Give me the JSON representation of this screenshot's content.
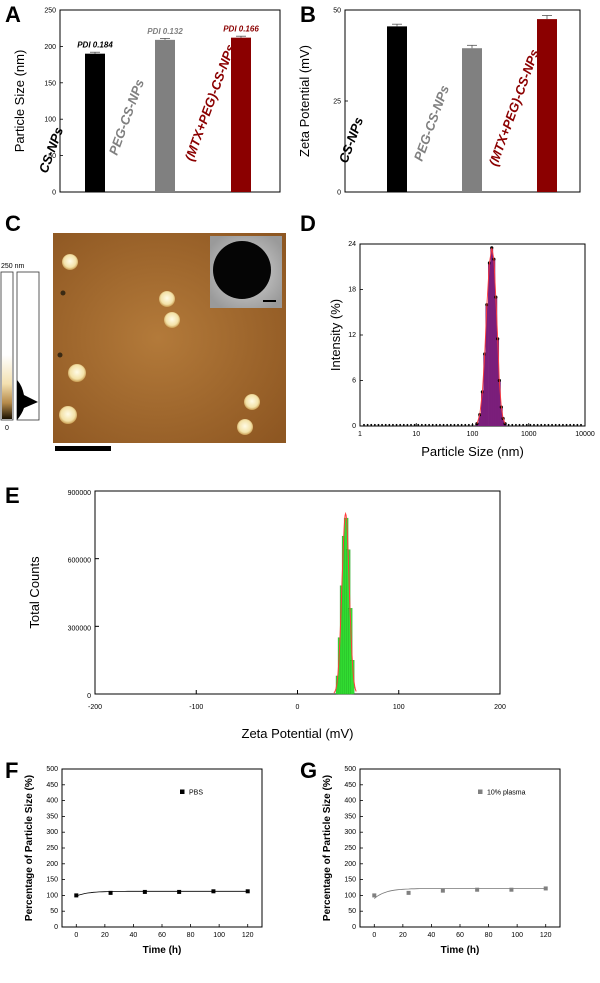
{
  "panels": {
    "A": "A",
    "B": "B",
    "C": "C",
    "D": "D",
    "E": "E",
    "F": "F",
    "G": "G"
  },
  "micro": {
    "afm_scale_max": "250 nm",
    "afm_scale_min": "0"
  },
  "colors": {
    "black": "#000000",
    "gray": "#808080",
    "darkred": "#8b0000",
    "purple": "#7b1e7b",
    "green": "#33dd33",
    "fit_red": "#ff3b3b"
  },
  "chart_data": [
    {
      "id": "A",
      "type": "bar",
      "ylabel": "Particle Size (nm)",
      "ylim": [
        0,
        250
      ],
      "yticks": [
        "0",
        "50",
        "100",
        "150",
        "200",
        "250"
      ],
      "categories": [
        "CS-NPs",
        "PEG-CS-NPs",
        "(MTX+PEG)-CS-NPs"
      ],
      "values": [
        190,
        209,
        212
      ],
      "errors": [
        2,
        2,
        2
      ],
      "bar_colors": [
        "#000000",
        "#808080",
        "#8b0000"
      ],
      "annotations": [
        "PDI 0.184",
        "PDI 0.132",
        "PDI 0.166"
      ]
    },
    {
      "id": "B",
      "type": "bar",
      "ylabel": "Zeta Potential (mV)",
      "ylim": [
        0,
        50
      ],
      "yticks": [
        "0",
        "25",
        "50"
      ],
      "categories": [
        "CS-NPs",
        "PEG-CS-NPs",
        "(MTX+PEG)-CS-NPs"
      ],
      "values": [
        45.5,
        39.5,
        47.5
      ],
      "errors": [
        0.6,
        0.8,
        1.0
      ],
      "bar_colors": [
        "#000000",
        "#808080",
        "#8b0000"
      ]
    },
    {
      "id": "D",
      "type": "bar",
      "xlabel": "Particle Size (nm)",
      "ylabel": "Intensity (%)",
      "xscale": "log",
      "xlim": [
        1,
        10000
      ],
      "ylim": [
        0,
        24
      ],
      "xticks": [
        "1",
        "10",
        "100",
        "1000",
        "10000"
      ],
      "yticks": [
        "0",
        "6",
        "12",
        "18",
        "24"
      ],
      "x": [
        120,
        135,
        150,
        165,
        180,
        200,
        220,
        240,
        260,
        280,
        300,
        325,
        350,
        380
      ],
      "values": [
        0.3,
        1.5,
        4.5,
        9.5,
        16,
        21.5,
        23.5,
        22,
        17,
        11.5,
        6,
        2.5,
        1,
        0.3
      ]
    },
    {
      "id": "E",
      "type": "bar",
      "xlabel": "Zeta Potential (mV)",
      "ylabel": "Total Counts",
      "xlim": [
        -200,
        200
      ],
      "ylim": [
        0,
        900000
      ],
      "xticks": [
        "-200",
        "-100",
        "0",
        "100",
        "200"
      ],
      "yticks": [
        "0",
        "300000",
        "600000",
        "900000"
      ],
      "x": [
        40,
        42,
        44,
        46,
        48,
        50,
        52,
        54
      ],
      "values": [
        80000,
        250000,
        480000,
        700000,
        780000,
        640000,
        380000,
        150000
      ]
    },
    {
      "id": "F",
      "type": "line",
      "xlabel": "Time (h)",
      "ylabel": "Percentage of Particle Size (%)",
      "legend": "PBS",
      "xlim": [
        -10,
        130
      ],
      "ylim": [
        0,
        500
      ],
      "xticks": [
        "0",
        "20",
        "40",
        "60",
        "80",
        "100",
        "120"
      ],
      "yticks": [
        "0",
        "50",
        "100",
        "150",
        "200",
        "250",
        "300",
        "350",
        "400",
        "450",
        "500"
      ],
      "x": [
        0,
        24,
        48,
        72,
        96,
        120
      ],
      "values": [
        100,
        108,
        111,
        111,
        113,
        113
      ],
      "marker_color": "#000000"
    },
    {
      "id": "G",
      "type": "line",
      "xlabel": "Time (h)",
      "ylabel": "Percentage of Particle Size (%)",
      "legend": "10% plasma",
      "xlim": [
        -10,
        130
      ],
      "ylim": [
        0,
        500
      ],
      "xticks": [
        "0",
        "20",
        "40",
        "60",
        "80",
        "100",
        "120"
      ],
      "yticks": [
        "0",
        "50",
        "100",
        "150",
        "200",
        "250",
        "300",
        "350",
        "400",
        "450",
        "500"
      ],
      "x": [
        0,
        24,
        48,
        72,
        96,
        120
      ],
      "values": [
        100,
        108,
        115,
        118,
        118,
        122
      ],
      "marker_color": "#808080"
    }
  ]
}
